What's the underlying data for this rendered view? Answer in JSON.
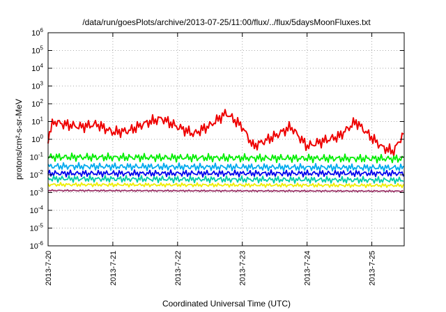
{
  "chart_data": {
    "type": "line",
    "title": "/data/run/goesPlots/archive/2013-07-25/11:00/flux/../flux/5daysMoonFluxes.txt",
    "xlabel": "Coordinated Universal Time (UTC)",
    "ylabel": "protons/cm²-s-sr-MeV",
    "y_scale": "log",
    "ylim": [
      1e-06,
      1000000.0
    ],
    "xlim": [
      "2013-07-20",
      "2013-07-25T12:00"
    ],
    "x_ticks": [
      "2013-7-20",
      "2013-7-21",
      "2013-7-22",
      "2013-7-23",
      "2013-7-24",
      "2013-7-25"
    ],
    "y_ticks": [
      {
        "base": "10",
        "exp": "-6"
      },
      {
        "base": "10",
        "exp": "-5"
      },
      {
        "base": "10",
        "exp": "-4"
      },
      {
        "base": "10",
        "exp": "-3"
      },
      {
        "base": "10",
        "exp": "-2"
      },
      {
        "base": "10",
        "exp": "-1"
      },
      {
        "base": "10",
        "exp": "0"
      },
      {
        "base": "10",
        "exp": "1"
      },
      {
        "base": "10",
        "exp": "2"
      },
      {
        "base": "10",
        "exp": "3"
      },
      {
        "base": "10",
        "exp": "4"
      },
      {
        "base": "10",
        "exp": "5"
      },
      {
        "base": "10",
        "exp": "6"
      }
    ],
    "grid": true,
    "legend": "none",
    "series": [
      {
        "color": "#ee0000",
        "x": [
          "2013-07-20T00:00",
          "2013-07-20T02:00",
          "2013-07-20T06:00",
          "2013-07-20T12:00",
          "2013-07-20T18:00",
          "2013-07-21T00:00",
          "2013-07-21T06:00",
          "2013-07-21T12:00",
          "2013-07-21T18:00",
          "2013-07-22T00:00",
          "2013-07-22T06:00",
          "2013-07-22T12:00",
          "2013-07-22T18:00",
          "2013-07-23T00:00",
          "2013-07-23T04:00",
          "2013-07-23T12:00",
          "2013-07-23T18:00",
          "2013-07-24T00:00",
          "2013-07-24T06:00",
          "2013-07-24T12:00",
          "2013-07-24T18:00",
          "2013-07-25T00:00",
          "2013-07-25T04:00",
          "2013-07-25T08:00",
          "2013-07-25T12:00"
        ],
        "y": [
          1.2,
          10,
          7,
          5,
          7,
          2.5,
          3,
          8,
          15,
          5,
          2,
          6,
          30,
          5,
          0.4,
          1.5,
          5,
          0.4,
          0.8,
          1.5,
          10,
          1.2,
          0.35,
          0.2,
          2.5
        ]
      },
      {
        "color": "#00ee00",
        "x": [
          "2013-07-20T00:00",
          "2013-07-25T12:00"
        ],
        "y": [
          0.1,
          0.08
        ]
      },
      {
        "color": "#00aaee",
        "x": [
          "2013-07-20T00:00",
          "2013-07-25T12:00"
        ],
        "y": [
          0.03,
          0.025
        ]
      },
      {
        "color": "#0000ee",
        "x": [
          "2013-07-20T00:00",
          "2013-07-25T12:00"
        ],
        "y": [
          0.012,
          0.012
        ]
      },
      {
        "color": "#00ccaa",
        "x": [
          "2013-07-20T00:00",
          "2013-07-25T12:00"
        ],
        "y": [
          0.006,
          0.005
        ]
      },
      {
        "color": "#eeee00",
        "x": [
          "2013-07-20T00:00",
          "2013-07-25T12:00"
        ],
        "y": [
          0.0028,
          0.0025
        ]
      },
      {
        "color": "#993366",
        "x": [
          "2013-07-20T00:00",
          "2013-07-25T12:00"
        ],
        "y": [
          0.0013,
          0.0012
        ]
      }
    ]
  }
}
